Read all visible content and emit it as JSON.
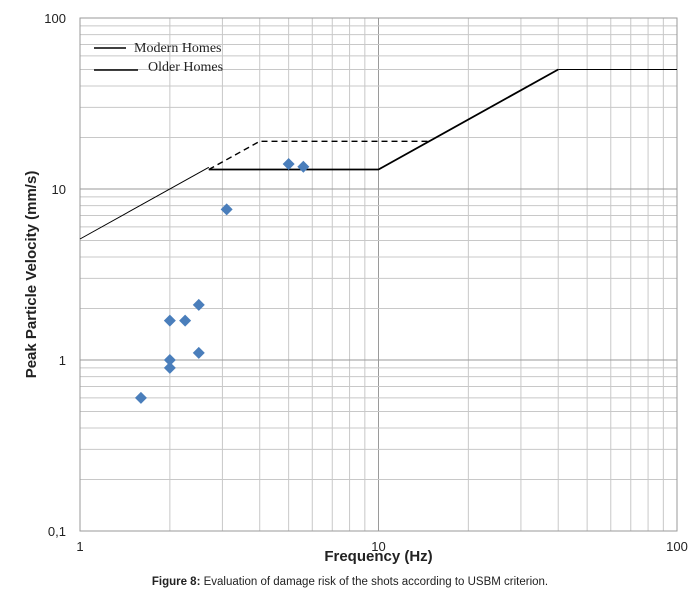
{
  "chart_data": {
    "type": "line",
    "x_scale": "log",
    "y_scale": "log",
    "xlim": [
      1,
      100
    ],
    "ylim": [
      0.1,
      100
    ],
    "x_ticks": [
      "1",
      "10",
      "100"
    ],
    "y_ticks": [
      "0,1",
      "1",
      "10",
      "100"
    ],
    "xlabel": "Frequency (Hz)",
    "ylabel": "Peak Particle Velocity (mm/s)",
    "grid": true,
    "legend_position": "top-left",
    "series": [
      {
        "name": "Modern Homes",
        "style": "solid",
        "color": "#000000",
        "points": [
          [
            2.7,
            13
          ],
          [
            10,
            13
          ],
          [
            40,
            50
          ]
        ]
      },
      {
        "name": "Older Homes",
        "style": "dashed",
        "color": "#000000",
        "points": [
          [
            2.7,
            13
          ],
          [
            4,
            19
          ],
          [
            15,
            19
          ]
        ]
      },
      {
        "name": "",
        "style": "thin-solid",
        "color": "#000000",
        "points": [
          [
            1,
            5.1
          ],
          [
            2.7,
            13.4
          ]
        ]
      },
      {
        "name": "",
        "style": "thin-solid",
        "color": "#000000",
        "points": [
          [
            40,
            50
          ],
          [
            100,
            50
          ]
        ]
      }
    ],
    "scatter": {
      "color": "#4a7ebb",
      "points": [
        [
          1.6,
          0.6
        ],
        [
          2.0,
          0.9
        ],
        [
          2.0,
          1.0
        ],
        [
          2.0,
          1.7
        ],
        [
          2.25,
          1.7
        ],
        [
          2.5,
          2.1
        ],
        [
          2.5,
          1.1
        ],
        [
          3.1,
          7.6
        ],
        [
          5.0,
          14.0
        ],
        [
          5.6,
          13.5
        ]
      ]
    }
  },
  "caption": {
    "label": "Figure 8:",
    "text": " Evaluation of damage risk of the shots according to USBM criterion."
  }
}
